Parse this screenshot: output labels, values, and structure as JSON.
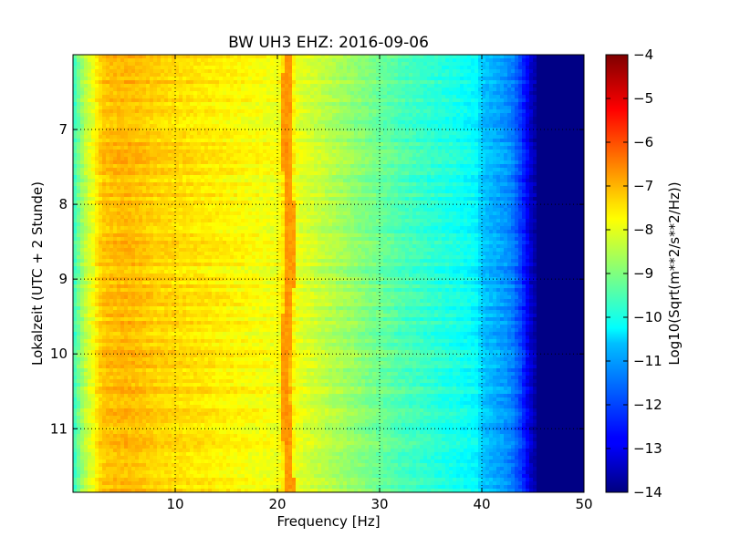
{
  "chart_data": {
    "type": "heatmap",
    "title": "BW UH3 EHZ: 2016-09-06",
    "xlabel": "Frequency [Hz]",
    "ylabel": "Lokalzeit (UTC + 2 Stunde)",
    "xlim": [
      0,
      50
    ],
    "ylim": [
      11.85,
      6.0
    ],
    "y_inverted": true,
    "x_ticks": [
      10,
      20,
      30,
      40,
      50
    ],
    "y_ticks": [
      7,
      8,
      9,
      10,
      11
    ],
    "grid": "dotted",
    "colormap": "jet",
    "colorbar": {
      "label": "Log10(Sqrt(m**2/s**2/Hz))",
      "range": [
        -14,
        -4
      ],
      "ticks": [
        -4,
        -5,
        -6,
        -7,
        -8,
        -9,
        -10,
        -11,
        -12,
        -13,
        -14
      ]
    },
    "spectrum_profile": {
      "frequency_hz": [
        0,
        0.5,
        1,
        1.5,
        2,
        2.5,
        3,
        4,
        5,
        6,
        7,
        8,
        10,
        12,
        14,
        16,
        18,
        19,
        20,
        20.5,
        21,
        21.5,
        22,
        24,
        26,
        28,
        30,
        32,
        34,
        36,
        38,
        39.5,
        40,
        41,
        42,
        43,
        44,
        45,
        46,
        50
      ],
      "log_amplitude": [
        -9.8,
        -9.2,
        -8.6,
        -8.2,
        -7.9,
        -7.4,
        -7.2,
        -7.1,
        -7.05,
        -7.1,
        -7.2,
        -7.3,
        -7.4,
        -7.5,
        -7.6,
        -7.7,
        -7.8,
        -7.85,
        -7.9,
        -7.6,
        -6.6,
        -7.6,
        -8.0,
        -8.3,
        -8.6,
        -8.9,
        -9.2,
        -9.5,
        -9.7,
        -9.9,
        -10.1,
        -10.3,
        -10.8,
        -11.0,
        -11.2,
        -11.5,
        -12.3,
        -13.5,
        -13.9,
        -13.95
      ]
    },
    "features": [
      {
        "name": "21 Hz line",
        "frequency_hz": 21,
        "log_amplitude": -6.6
      },
      {
        "name": "40 Hz step",
        "frequency_hz": 40,
        "log_amplitude": -10.8
      }
    ]
  },
  "colors": {
    "jet": [
      "#00007f",
      "#0000ff",
      "#007fff",
      "#00ffff",
      "#7fff7f",
      "#ffff00",
      "#ff7f00",
      "#ff0000",
      "#7f0000"
    ]
  }
}
